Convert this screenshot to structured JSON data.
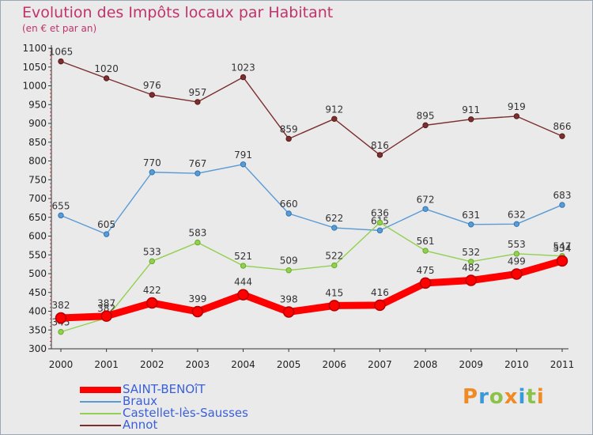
{
  "title": "Evolution des Impôts locaux par Habitant",
  "subtitle": "(en € et par an)",
  "logo": {
    "text": "Proxiti"
  },
  "chart_data": {
    "type": "line",
    "categories": [
      "2000",
      "2001",
      "2002",
      "2003",
      "2004",
      "2005",
      "2006",
      "2007",
      "2008",
      "2009",
      "2010",
      "2011"
    ],
    "ylim": [
      300,
      1100
    ],
    "yticks": [
      300,
      350,
      400,
      450,
      500,
      550,
      600,
      650,
      700,
      750,
      800,
      850,
      900,
      950,
      1000,
      1050,
      1100
    ],
    "grid": false,
    "legend_position": "bottom-left",
    "series": [
      {
        "name": "SAINT-BENOîT",
        "color": "#ff0000",
        "marker": "#b30000",
        "values": [
          382,
          387,
          422,
          399,
          444,
          398,
          415,
          416,
          475,
          482,
          499,
          534
        ]
      },
      {
        "name": "Braux",
        "color": "#5b9bd5",
        "marker": "#2f75b5",
        "values": [
          655,
          605,
          770,
          767,
          791,
          660,
          622,
          615,
          672,
          631,
          632,
          683
        ]
      },
      {
        "name": "Castellet-lès-Sausses",
        "color": "#92d050",
        "marker": "#6aaa2a",
        "values": [
          345,
          382,
          533,
          583,
          521,
          509,
          522,
          636,
          561,
          532,
          553,
          547
        ]
      },
      {
        "name": "Annot",
        "color": "#7b2f2f",
        "marker": "#5a1a1a",
        "values": [
          1065,
          1020,
          976,
          957,
          1023,
          859,
          912,
          816,
          895,
          911,
          919,
          866
        ]
      }
    ]
  }
}
